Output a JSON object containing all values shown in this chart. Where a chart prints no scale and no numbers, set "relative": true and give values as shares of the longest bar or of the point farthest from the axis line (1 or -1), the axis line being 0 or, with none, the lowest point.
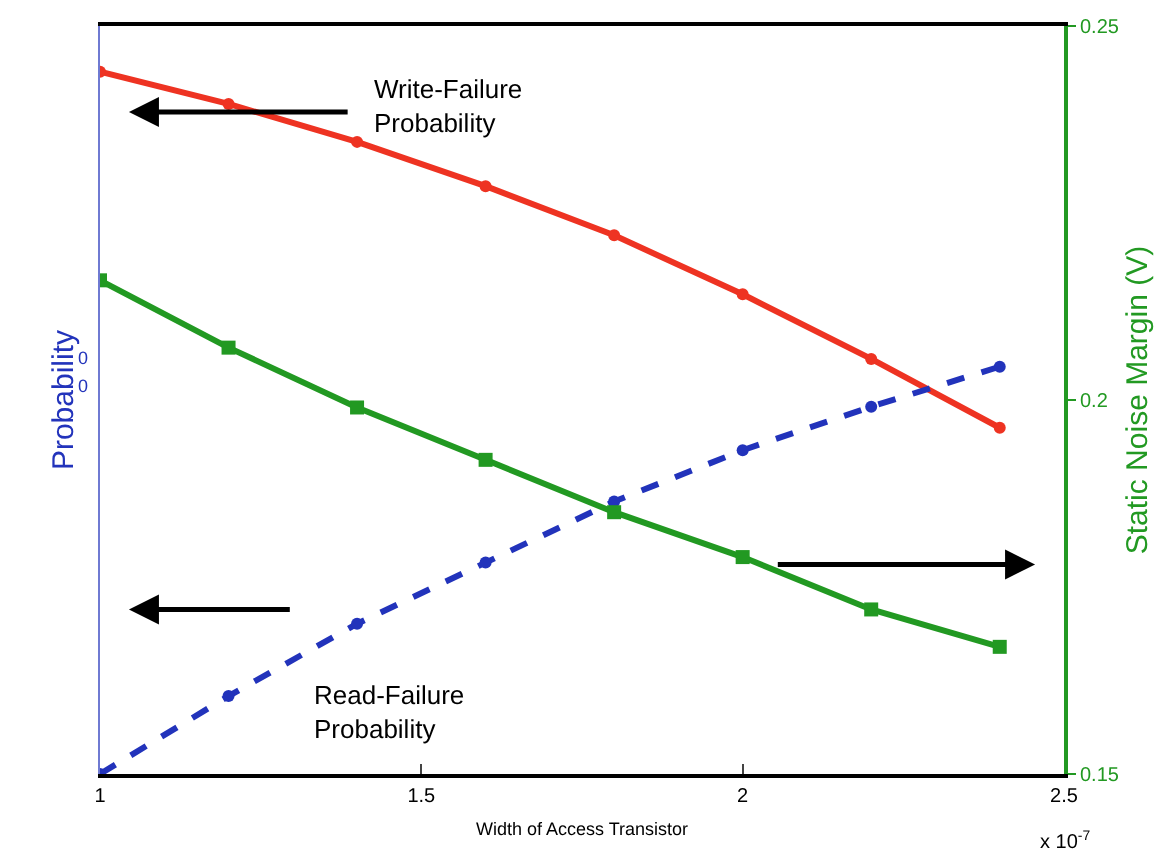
{
  "chart_data": {
    "type": "line",
    "relative": true,
    "xlabel": "Width of Access Transistor",
    "ylabel": "Probability",
    "y2label": "Static Noise Margin (V)",
    "x": [
      1.0,
      1.2,
      1.4,
      1.6,
      1.8,
      2.0,
      2.2,
      2.4
    ],
    "xlim": [
      1,
      2.5
    ],
    "xticks": [
      1,
      1.5,
      2,
      2.5
    ],
    "y2lim": [
      0.15,
      0.25
    ],
    "y2ticks": [
      0.15,
      0.2,
      0.25
    ],
    "series": [
      {
        "color": "#ee3322",
        "marker": "circle",
        "line_style": "solid",
        "values": [
          1.0,
          0.954,
          0.9,
          0.837,
          0.767,
          0.683,
          0.591,
          0.493
        ]
      },
      {
        "color": "#2233bb",
        "marker": "circle",
        "line_style": "dashed",
        "values": [
          0.0,
          0.111,
          0.214,
          0.301,
          0.388,
          0.461,
          0.523,
          0.58
        ]
      },
      {
        "color": "#229922",
        "marker": "square",
        "line_style": "solid",
        "axis": "y2",
        "values": [
          0.216,
          0.207,
          0.199,
          0.192,
          0.185,
          0.179,
          0.172,
          0.167
        ]
      }
    ],
    "annotations": [
      "Write-Failure\nProbability",
      "Read-Failure\nProbability",
      "x 10$^{-7}$",
      "0",
      "0"
    ]
  }
}
